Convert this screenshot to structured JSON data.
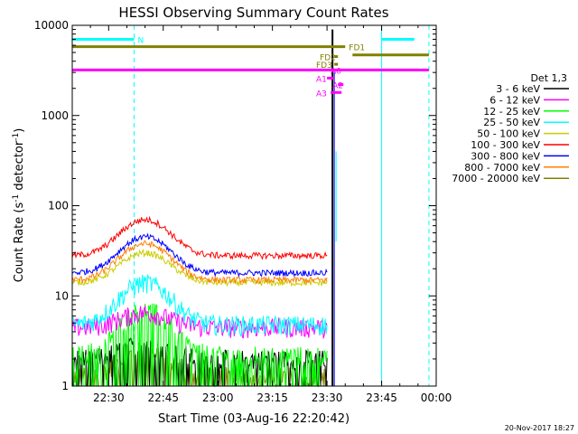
{
  "chart_data": {
    "type": "line",
    "title": "HESSI Observing Summary Count Rates",
    "xlabel": "Start Time (03-Aug-16 22:20:42)",
    "ylabel_main": "Count Rate (s",
    "ylabel_sup1": "-1",
    "ylabel_mid": " detector",
    "ylabel_sup2": "-1",
    "ylabel_end": ")",
    "y_scale": "log",
    "ylim": [
      1,
      10000
    ],
    "xlim_minutes": [
      0,
      100
    ],
    "x_ticks": [
      {
        "label": "22:30",
        "min": 10
      },
      {
        "label": "22:45",
        "min": 25
      },
      {
        "label": "23:00",
        "min": 40
      },
      {
        "label": "23:15",
        "min": 55
      },
      {
        "label": "23:30",
        "min": 70
      },
      {
        "label": "23:45",
        "min": 85
      },
      {
        "label": "00:00",
        "min": 100
      }
    ],
    "y_ticks": [
      {
        "label": "1",
        "value": 1
      },
      {
        "label": "10",
        "value": 10
      },
      {
        "label": "100",
        "value": 100
      },
      {
        "label": "1000",
        "value": 1000
      },
      {
        "label": "10000",
        "value": 10000
      }
    ],
    "legend_title": "Det 1,3",
    "legend_position": "right",
    "series": [
      {
        "name": "3 - 6 keV",
        "color": "#000000",
        "base": 2.0,
        "peak": 3.0
      },
      {
        "name": "6 - 12 keV",
        "color": "#ff00ff",
        "base": 4.5,
        "peak": 6.5
      },
      {
        "name": "12 - 25 keV",
        "color": "#00ff00",
        "base": 2.2,
        "peak": 7.0
      },
      {
        "name": "25 - 50 keV",
        "color": "#00ffff",
        "base": 4.8,
        "peak": 14
      },
      {
        "name": "50 - 100 keV",
        "color": "#cccc00",
        "base": 14,
        "peak": 30
      },
      {
        "name": "100 - 300 keV",
        "color": "#ff0000",
        "base": 28,
        "peak": 70
      },
      {
        "name": "300 - 800 keV",
        "color": "#0000ff",
        "base": 18,
        "peak": 45
      },
      {
        "name": "800 - 7000 keV",
        "color": "#ff8000",
        "base": 15,
        "peak": 38
      },
      {
        "name": "7000 - 20000 keV",
        "color": "#808000",
        "base": 1.3,
        "peak": 2.5
      }
    ],
    "flag_bars": [
      {
        "label": "N",
        "color": "#00ffff",
        "y": 7000,
        "segments": [
          [
            0,
            17
          ]
        ],
        "label_min": 18
      },
      {
        "label": "",
        "color": "#00ffff",
        "y": 7000,
        "segments": [
          [
            85,
            94
          ]
        ],
        "label_min": null
      },
      {
        "label": "FD1",
        "color": "#808000",
        "y": 5800,
        "segments": [
          [
            0,
            75
          ]
        ],
        "label_min": 76
      },
      {
        "label": "",
        "color": "#808000",
        "y": 4700,
        "segments": [
          [
            77,
            98
          ]
        ],
        "label_min": null
      },
      {
        "label": "FD2",
        "color": "#808000",
        "y": 4500,
        "segments": [
          [
            72,
            73
          ]
        ],
        "label_min": 68
      },
      {
        "label": "FD3",
        "color": "#808000",
        "y": 3700,
        "segments": [
          [
            72,
            73
          ]
        ],
        "label_min": 67
      },
      {
        "label": "A0",
        "color": "#ff00ff",
        "y": 3200,
        "segments": [
          [
            0,
            98
          ]
        ],
        "label_min": 71
      },
      {
        "label": "A1",
        "color": "#ff00ff",
        "y": 2600,
        "segments": [
          [
            70,
            72
          ]
        ],
        "label_min": 67
      },
      {
        "label": "A2",
        "color": "#ff00ff",
        "y": 2200,
        "segments": [
          [
            73,
            74.5
          ]
        ],
        "label_min": 71.5
      },
      {
        "label": "A3",
        "color": "#ff00ff",
        "y": 1800,
        "segments": [
          [
            71,
            74
          ]
        ],
        "label_min": 67
      }
    ],
    "vertical_markers": [
      {
        "min": 0,
        "style": "solid",
        "color": "#00ffff"
      },
      {
        "min": 17,
        "style": "dashed",
        "color": "#00ffff"
      },
      {
        "min": 85,
        "style": "solid",
        "color": "#00ffff"
      },
      {
        "min": 98,
        "style": "dashed",
        "color": "#00ffff"
      }
    ],
    "saa_start_min": 70,
    "footer_date": "20-Nov-2017 18:27"
  }
}
